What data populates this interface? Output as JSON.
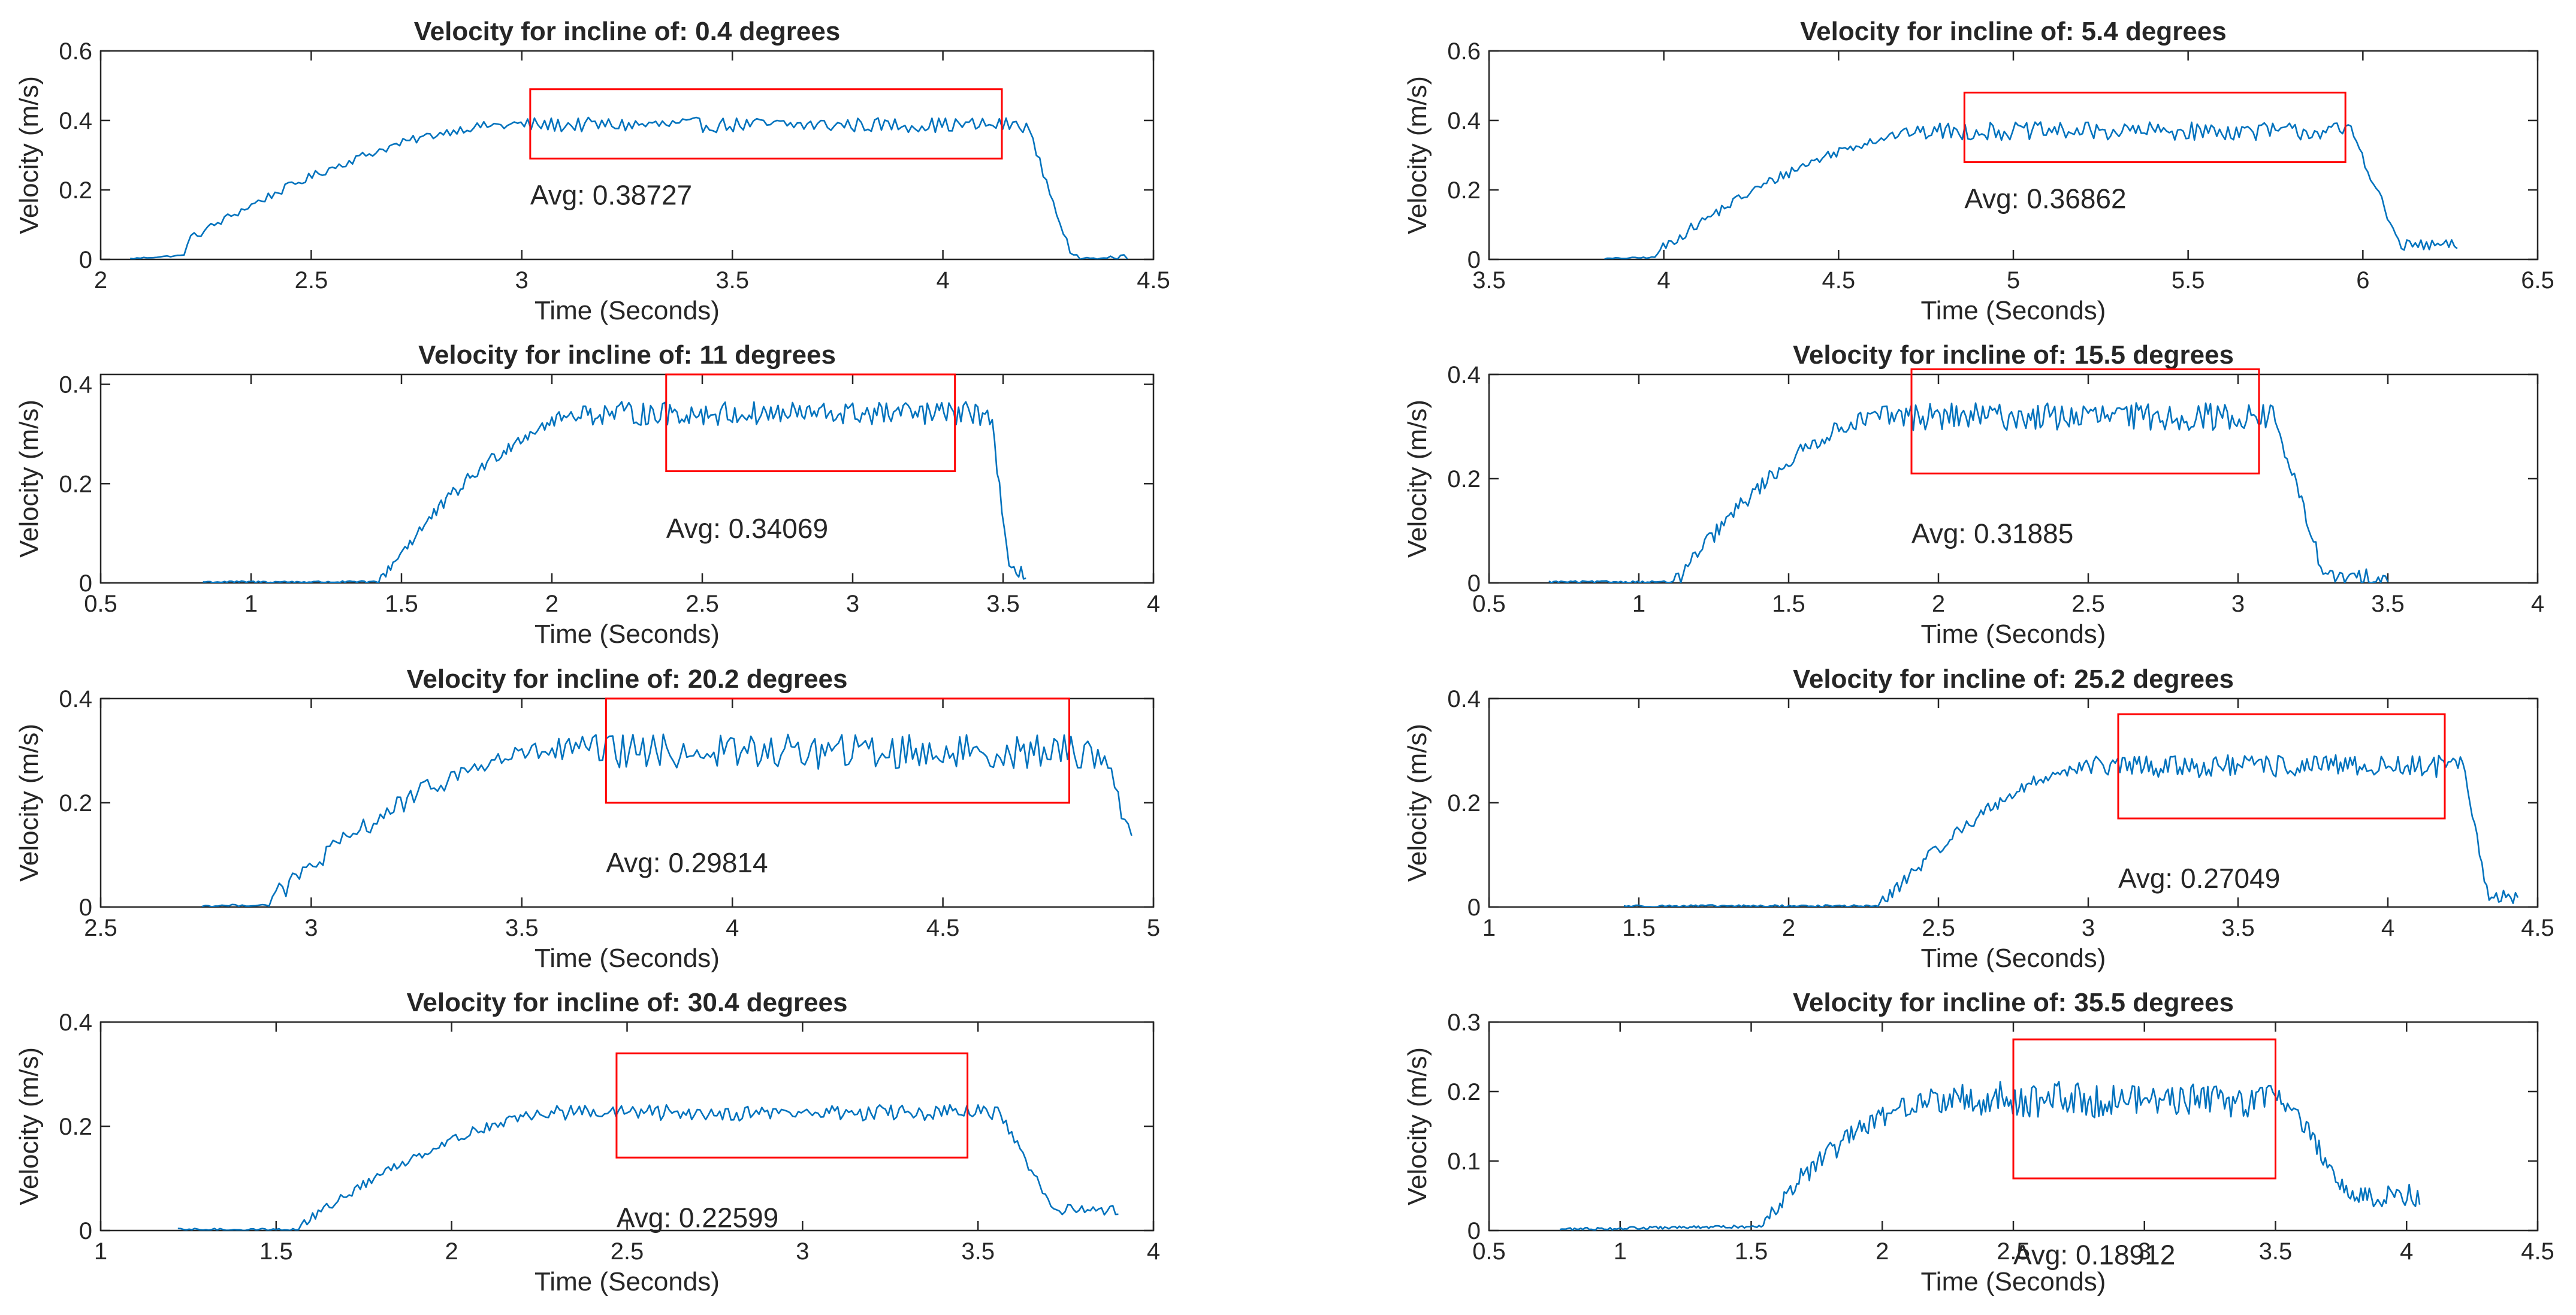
{
  "chart_data": [
    {
      "type": "line",
      "title": "Velocity for incline of: 0.4 degrees",
      "xlabel": "Time (Seconds)",
      "ylabel": "Velocity (m/s)",
      "xlim": [
        2,
        4.5
      ],
      "ylim": [
        0,
        0.6
      ],
      "xticks": [
        2,
        2.5,
        3,
        3.5,
        4,
        4.5
      ],
      "xtick_labels": [
        "2",
        "2.5",
        "3",
        "3.5",
        "4",
        "4.5"
      ],
      "yticks": [
        0,
        0.2,
        0.4,
        0.6
      ],
      "ytick_labels": [
        "0",
        "0.2",
        "0.4",
        "0.6"
      ],
      "color": "#0072BD",
      "profile": {
        "t_start": 2.07,
        "t_rise": 2.2,
        "t_flat": 2.95,
        "t_drop": 4.2,
        "t_end": 4.44,
        "v_rise_start": 0.05,
        "v_plateau": 0.387,
        "v_tail": 0.0,
        "noise": 0.018
      },
      "avg_box": {
        "x0": 3.02,
        "x1": 4.14,
        "y0": 0.29,
        "y1": 0.49,
        "color": "#ff0000"
      },
      "avg_label": {
        "text": "Avg: 0.38727",
        "x": 3.02,
        "y": 0.185
      }
    },
    {
      "type": "line",
      "title": "Velocity for incline of: 5.4 degrees",
      "xlabel": "Time (Seconds)",
      "ylabel": "Velocity (m/s)",
      "xlim": [
        3.5,
        6.5
      ],
      "ylim": [
        0,
        0.6
      ],
      "xticks": [
        3.5,
        4,
        4.5,
        5,
        5.5,
        6,
        6.5
      ],
      "xtick_labels": [
        "3.5",
        "4",
        "4.5",
        "5",
        "5.5",
        "6",
        "6.5"
      ],
      "yticks": [
        0,
        0.2,
        0.4,
        0.6
      ],
      "ytick_labels": [
        "0",
        "0.2",
        "0.4",
        "0.6"
      ],
      "color": "#0072BD",
      "profile": {
        "t_start": 3.83,
        "t_rise": 3.98,
        "t_flat": 4.75,
        "t_drop": 5.97,
        "t_end": 6.27,
        "v_rise_start": 0.02,
        "v_plateau": 0.369,
        "v_tail": 0.04,
        "noise": 0.022
      },
      "avg_box": {
        "x0": 4.86,
        "x1": 5.95,
        "y0": 0.28,
        "y1": 0.48,
        "color": "#ff0000"
      },
      "avg_label": {
        "text": "Avg: 0.36862",
        "x": 4.86,
        "y": 0.175
      }
    },
    {
      "type": "line",
      "title": "Velocity for incline of: 11 degrees",
      "xlabel": "Time (Seconds)",
      "ylabel": "Velocity (m/s)",
      "xlim": [
        0.5,
        4
      ],
      "ylim": [
        0,
        0.42
      ],
      "xticks": [
        0.5,
        1,
        1.5,
        2,
        2.5,
        3,
        3.5,
        4
      ],
      "xtick_labels": [
        "0.5",
        "1",
        "1.5",
        "2",
        "2.5",
        "3",
        "3.5",
        "4"
      ],
      "yticks": [
        0,
        0.2,
        0.4
      ],
      "ytick_labels": [
        "0",
        "0.2",
        "0.4"
      ],
      "color": "#0072BD",
      "profile": {
        "t_start": 0.84,
        "t_rise": 1.42,
        "t_flat": 2.1,
        "t_drop": 3.46,
        "t_end": 3.58,
        "v_rise_start": 0.0,
        "v_plateau": 0.341,
        "v_tail": 0.02,
        "noise": 0.02
      },
      "avg_box": {
        "x0": 2.38,
        "x1": 3.34,
        "y0": 0.225,
        "y1": 0.42,
        "color": "#ff0000"
      },
      "avg_label": {
        "text": "Avg: 0.34069",
        "x": 2.38,
        "y": 0.11
      }
    },
    {
      "type": "line",
      "title": "Velocity for incline of: 15.5 degrees",
      "xlabel": "Time (Seconds)",
      "ylabel": "Velocity (m/s)",
      "xlim": [
        0.5,
        4
      ],
      "ylim": [
        0,
        0.4
      ],
      "xticks": [
        0.5,
        1,
        1.5,
        2,
        2.5,
        3,
        3.5,
        4
      ],
      "xtick_labels": [
        "0.5",
        "1",
        "1.5",
        "2",
        "2.5",
        "3",
        "3.5",
        "4"
      ],
      "yticks": [
        0,
        0.2,
        0.4
      ],
      "ytick_labels": [
        "0",
        "0.2",
        "0.4"
      ],
      "color": "#0072BD",
      "profile": {
        "t_start": 0.7,
        "t_rise": 1.12,
        "t_flat": 1.8,
        "t_drop": 3.12,
        "t_end": 3.5,
        "v_rise_start": 0.0,
        "v_plateau": 0.319,
        "v_tail": 0.01,
        "noise": 0.022
      },
      "avg_box": {
        "x0": 1.91,
        "x1": 3.07,
        "y0": 0.21,
        "y1": 0.41,
        "color": "#ff0000"
      },
      "avg_label": {
        "text": "Avg: 0.31885",
        "x": 1.91,
        "y": 0.095
      }
    },
    {
      "type": "line",
      "title": "Velocity for incline of: 20.2 degrees",
      "xlabel": "Time (Seconds)",
      "ylabel": "Velocity (m/s)",
      "xlim": [
        2.5,
        5
      ],
      "ylim": [
        0,
        0.4
      ],
      "xticks": [
        2.5,
        3,
        3.5,
        4,
        4.5,
        5
      ],
      "xtick_labels": [
        "2.5",
        "3",
        "3.5",
        "4",
        "4.5",
        "5"
      ],
      "yticks": [
        0,
        0.2,
        0.4
      ],
      "ytick_labels": [
        "0",
        "0.2",
        "0.4"
      ],
      "color": "#0072BD",
      "profile": {
        "t_start": 2.74,
        "t_rise": 2.9,
        "t_flat": 3.55,
        "t_drop": 4.88,
        "t_end": 4.95,
        "v_rise_start": 0.01,
        "v_plateau": 0.298,
        "v_tail": 0.15,
        "noise": 0.028
      },
      "avg_box": {
        "x0": 3.7,
        "x1": 4.8,
        "y0": 0.2,
        "y1": 0.4,
        "color": "#ff0000"
      },
      "avg_label": {
        "text": "Avg: 0.29814",
        "x": 3.7,
        "y": 0.085
      }
    },
    {
      "type": "line",
      "title": "Velocity for incline of: 25.2 degrees",
      "xlabel": "Time (Seconds)",
      "ylabel": "Velocity (m/s)",
      "xlim": [
        1,
        4.5
      ],
      "ylim": [
        0,
        0.4
      ],
      "xticks": [
        1,
        1.5,
        2,
        2.5,
        3,
        3.5,
        4,
        4.5
      ],
      "xtick_labels": [
        "1",
        "1.5",
        "2",
        "2.5",
        "3",
        "3.5",
        "4",
        "4.5"
      ],
      "yticks": [
        0,
        0.2,
        0.4
      ],
      "ytick_labels": [
        "0",
        "0.2",
        "0.4"
      ],
      "color": "#0072BD",
      "profile": {
        "t_start": 1.45,
        "t_rise": 2.3,
        "t_flat": 3.0,
        "t_drop": 4.25,
        "t_end": 4.44,
        "v_rise_start": 0.0,
        "v_plateau": 0.27,
        "v_tail": 0.02,
        "noise": 0.018
      },
      "avg_box": {
        "x0": 3.1,
        "x1": 4.19,
        "y0": 0.17,
        "y1": 0.37,
        "color": "#ff0000"
      },
      "avg_label": {
        "text": "Avg: 0.27049",
        "x": 3.1,
        "y": 0.055
      }
    },
    {
      "type": "line",
      "title": "Velocity for incline of: 30.4 degrees",
      "xlabel": "Time (Seconds)",
      "ylabel": "Velocity (m/s)",
      "xlim": [
        1,
        4
      ],
      "ylim": [
        0,
        0.4
      ],
      "xticks": [
        1,
        1.5,
        2,
        2.5,
        3,
        3.5,
        4
      ],
      "xtick_labels": [
        "1",
        "1.5",
        "2",
        "2.5",
        "3",
        "3.5",
        "4"
      ],
      "yticks": [
        0,
        0.2,
        0.4
      ],
      "ytick_labels": [
        "0",
        "0.2",
        "0.4"
      ],
      "color": "#0072BD",
      "profile": {
        "t_start": 1.22,
        "t_rise": 1.55,
        "t_flat": 2.3,
        "t_drop": 3.56,
        "t_end": 3.9,
        "v_rise_start": 0.0,
        "v_plateau": 0.226,
        "v_tail": 0.04,
        "noise": 0.013
      },
      "avg_box": {
        "x0": 2.47,
        "x1": 3.47,
        "y0": 0.14,
        "y1": 0.34,
        "color": "#ff0000"
      },
      "avg_label": {
        "text": "Avg: 0.22599",
        "x": 2.47,
        "y": 0.025
      }
    },
    {
      "type": "line",
      "title": "Velocity for incline of: 35.5 degrees",
      "xlabel": "Time (Seconds)",
      "ylabel": "Velocity (m/s)",
      "xlim": [
        0.5,
        4.5
      ],
      "ylim": [
        0,
        0.3
      ],
      "xticks": [
        0.5,
        1,
        1.5,
        2,
        2.5,
        3,
        3.5,
        4,
        4.5
      ],
      "xtick_labels": [
        "0.5",
        "1",
        "1.5",
        "2",
        "2.5",
        "3",
        "3.5",
        "4",
        "4.5"
      ],
      "yticks": [
        0,
        0.1,
        0.2,
        0.3
      ],
      "ytick_labels": [
        "0",
        "0.1",
        "0.2",
        "0.3"
      ],
      "color": "#0072BD",
      "profile": {
        "t_start": 0.77,
        "t_rise": 1.55,
        "t_flat": 2.2,
        "t_drop": 3.55,
        "t_end": 4.05,
        "v_rise_start": 0.02,
        "v_plateau": 0.189,
        "v_tail": 0.05,
        "noise": 0.022
      },
      "avg_box": {
        "x0": 2.5,
        "x1": 3.5,
        "y0": 0.075,
        "y1": 0.275,
        "color": "#ff0000"
      },
      "avg_label": {
        "text": "Avg: 0.18912",
        "x": 2.5,
        "y": -0.035
      }
    }
  ]
}
